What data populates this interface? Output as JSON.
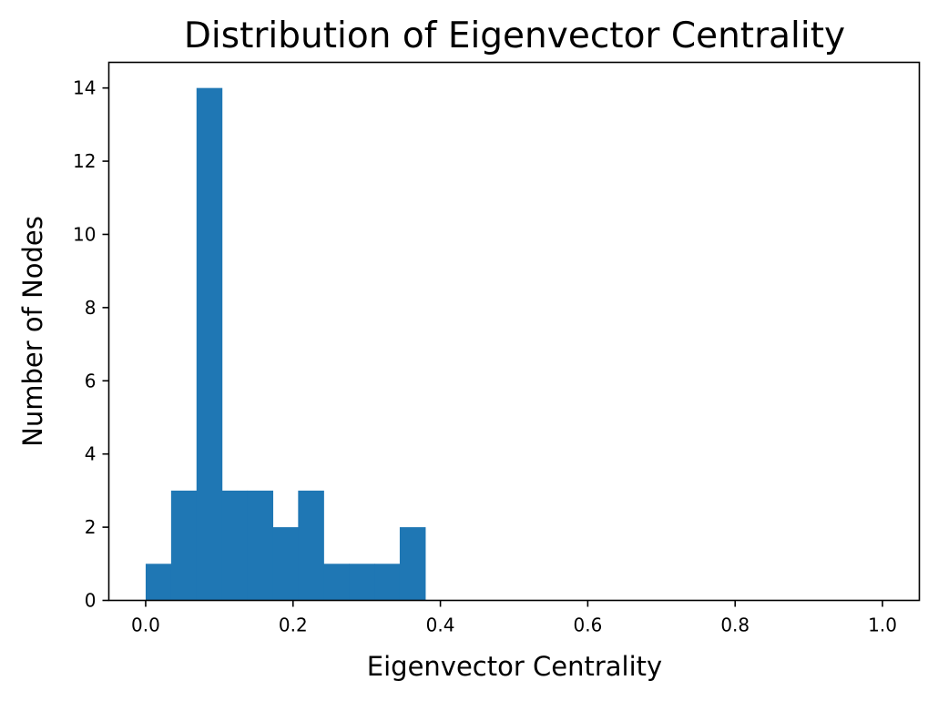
{
  "chart_data": {
    "type": "bar",
    "title": "Distribution of Eigenvector Centrality",
    "xlabel": "Eigenvector Centrality",
    "ylabel": "Number of Nodes",
    "xlim": [
      -0.05,
      1.05
    ],
    "ylim": [
      0,
      14.7
    ],
    "xticks": [
      0.0,
      0.2,
      0.4,
      0.6,
      0.8,
      1.0
    ],
    "xtick_labels": [
      "0.0",
      "0.2",
      "0.4",
      "0.6",
      "0.8",
      "1.0"
    ],
    "yticks": [
      0,
      2,
      4,
      6,
      8,
      10,
      12,
      14
    ],
    "ytick_labels": [
      "0",
      "2",
      "4",
      "6",
      "8",
      "10",
      "12",
      "14"
    ],
    "bin_edges": [
      0,
      0.0345,
      0.069,
      0.1034,
      0.1379,
      0.1724,
      0.2069,
      0.2414,
      0.2759,
      0.3103,
      0.3448,
      0.3793,
      0.4138,
      0.4483,
      0.4828,
      0.5172,
      0.5517,
      0.5862,
      0.6207,
      0.6552,
      0.6897,
      0.7241,
      0.7586,
      0.7931,
      0.8276,
      0.8621,
      0.8966,
      0.931,
      0.9655,
      1.0
    ],
    "values": [
      1,
      3,
      14,
      3,
      3,
      2,
      3,
      1,
      1,
      1,
      2,
      0,
      0,
      0,
      0,
      0,
      0,
      0,
      0,
      0,
      0,
      0,
      0,
      0,
      0,
      0,
      0,
      0,
      0
    ],
    "color": "#1f77b4",
    "grid": false,
    "legend": "none"
  }
}
